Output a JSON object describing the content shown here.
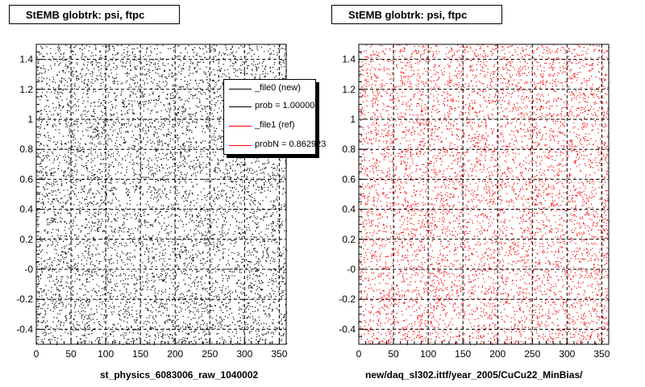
{
  "chart_data": [
    {
      "type": "scatter",
      "title": "StEMB globtrk: psi, ftpc",
      "xlabel": "st_physics_6083006_raw_1040002",
      "ylabel": "",
      "xlim": [
        0,
        360
      ],
      "ylim": [
        -0.5,
        1.5
      ],
      "x_ticks": [
        0,
        50,
        100,
        150,
        200,
        250,
        300,
        350
      ],
      "y_ticks": [
        -0.4,
        -0.2,
        0,
        0.2,
        0.4,
        0.6,
        0.8,
        1,
        1.2,
        1.4
      ],
      "y_tick_labels": [
        "-0.4",
        "-0.2",
        "-0",
        "0.2",
        "0.4",
        "0.6",
        "0.8",
        "1",
        "1.2",
        "1.4"
      ],
      "grid": true,
      "marker_color": "#000000",
      "legend_position": "top-right",
      "legend": [
        {
          "label": "_file0 (new)",
          "color": "#000000"
        },
        {
          "label": "prob = 1.000000",
          "color": "#000000"
        },
        {
          "label": "_file1 (ref)",
          "color": "#ff0000"
        },
        {
          "label": "probN = 0.862923",
          "color": "#ff0000"
        }
      ]
    },
    {
      "type": "scatter",
      "title": "StEMB globtrk: psi, ftpc",
      "xlabel": "new/daq_sl302.ittf/year_2005/CuCu22_MinBias/",
      "ylabel": "",
      "xlim": [
        0,
        360
      ],
      "ylim": [
        -0.5,
        1.5
      ],
      "x_ticks": [
        0,
        50,
        100,
        150,
        200,
        250,
        300,
        350
      ],
      "y_ticks": [
        -0.4,
        -0.2,
        0,
        0.2,
        0.4,
        0.6,
        0.8,
        1,
        1.2,
        1.4
      ],
      "y_tick_labels": [
        "-0.4",
        "-0.2",
        "-0",
        "0.2",
        "0.4",
        "0.6",
        "0.8",
        "1",
        "1.2",
        "1.4"
      ],
      "grid": true,
      "marker_color": "#ff0000"
    }
  ]
}
